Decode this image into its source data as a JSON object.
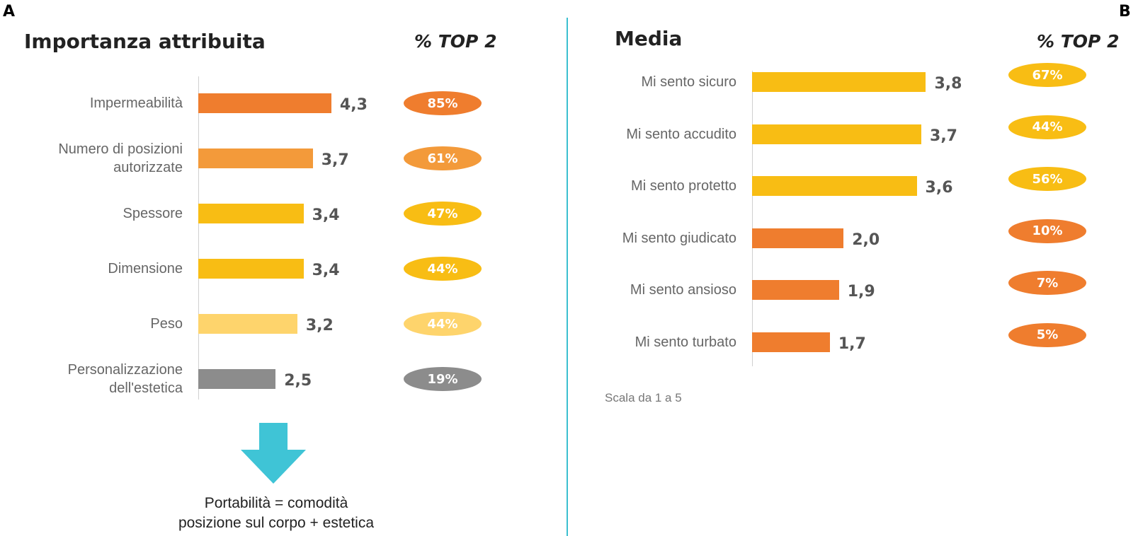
{
  "panels": {
    "a_letter": "A",
    "b_letter": "B"
  },
  "colors": {
    "orange": "#ef7d2e",
    "orange_light": "#f39a3a",
    "yellow": "#f8bd14",
    "yellow_light": "#fed46c",
    "gray": "#8c8c8c",
    "arrow": "#3fc4d6",
    "divider": "#3bbfd0"
  },
  "chart_data": [
    {
      "type": "bar",
      "orientation": "horizontal",
      "title": "Importanza attribuita",
      "top2_heading": "% TOP 2",
      "categories": [
        "Impermeabilità",
        "Numero di posizioni\nautorizzate",
        "Spessore",
        "Dimensione",
        "Peso",
        "Personalizzazione\ndell'estetica"
      ],
      "values": [
        4.3,
        3.7,
        3.4,
        3.4,
        3.2,
        2.5
      ],
      "value_labels": [
        "4,3",
        "3,7",
        "3,4",
        "3,4",
        "3,2",
        "2,5"
      ],
      "top2": [
        "85%",
        "61%",
        "47%",
        "44%",
        "44%",
        "19%"
      ],
      "bar_colors": [
        "orange",
        "orange_light",
        "yellow",
        "yellow",
        "yellow_light",
        "gray"
      ],
      "xlim": [
        0,
        5
      ]
    },
    {
      "type": "bar",
      "orientation": "horizontal",
      "title": "Media",
      "top2_heading": "% TOP 2",
      "categories": [
        "Mi sento sicuro",
        "Mi sento accudito",
        "Mi sento protetto",
        "Mi sento giudicato",
        "Mi sento ansioso",
        "Mi sento turbato"
      ],
      "values": [
        3.8,
        3.7,
        3.6,
        2.0,
        1.9,
        1.7
      ],
      "value_labels": [
        "3,8",
        "3,7",
        "3,6",
        "2,0",
        "1,9",
        "1,7"
      ],
      "top2": [
        "67%",
        "44%",
        "56%",
        "10%",
        "7%",
        "5%"
      ],
      "bar_colors": [
        "yellow",
        "yellow",
        "yellow",
        "orange",
        "orange",
        "orange"
      ],
      "scale_note": "Scala da 1 a 5",
      "xlim": [
        0,
        5
      ]
    }
  ],
  "footnote": {
    "line1": "Portabilità = comodità",
    "line2": "posizione sul corpo + estetica"
  }
}
